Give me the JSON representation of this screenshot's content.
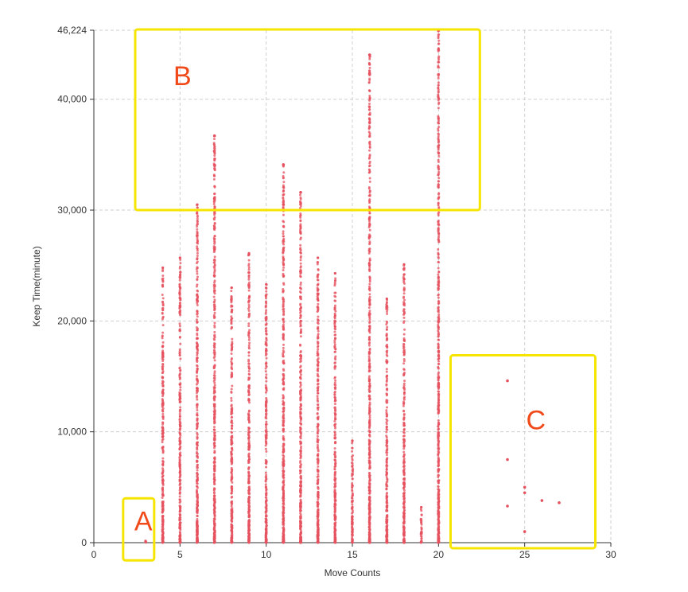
{
  "chart_data": {
    "type": "scatter",
    "title": "",
    "xlabel": "Move Counts",
    "ylabel": "Keep Time(minute)",
    "xlim": [
      0,
      30
    ],
    "ylim": [
      0,
      46224
    ],
    "x_ticks": [
      "0",
      "5",
      "10",
      "15",
      "20",
      "25",
      "30"
    ],
    "y_ticks": [
      "0",
      "10,000",
      "20,000",
      "30,000",
      "40,000",
      "46,224"
    ],
    "grid": true,
    "point_color": "#e5515f",
    "columns": [
      {
        "x": 3,
        "max": 150
      },
      {
        "x": 4,
        "max": 24800
      },
      {
        "x": 5,
        "max": 25700
      },
      {
        "x": 6,
        "max": 30500
      },
      {
        "x": 7,
        "max": 36700
      },
      {
        "x": 8,
        "max": 23000
      },
      {
        "x": 9,
        "max": 26100
      },
      {
        "x": 10,
        "max": 23300
      },
      {
        "x": 11,
        "max": 34100
      },
      {
        "x": 12,
        "max": 31600
      },
      {
        "x": 13,
        "max": 25700
      },
      {
        "x": 14,
        "max": 24300
      },
      {
        "x": 15,
        "max": 9200
      },
      {
        "x": 16,
        "max": 44000
      },
      {
        "x": 17,
        "max": 22000
      },
      {
        "x": 18,
        "max": 25100
      },
      {
        "x": 19,
        "max": 3200
      },
      {
        "x": 20,
        "max": 46224
      }
    ],
    "outliers": [
      {
        "x": 7,
        "y": 36700
      },
      {
        "x": 7,
        "y": 31000
      },
      {
        "x": 11,
        "y": 34100
      },
      {
        "x": 11,
        "y": 30500
      },
      {
        "x": 12,
        "y": 31600
      },
      {
        "x": 16,
        "y": 44000
      },
      {
        "x": 16,
        "y": 42300
      },
      {
        "x": 20,
        "y": 46224
      },
      {
        "x": 20,
        "y": 14300
      },
      {
        "x": 24,
        "y": 14600
      },
      {
        "x": 24,
        "y": 7500
      },
      {
        "x": 24,
        "y": 3300
      },
      {
        "x": 25,
        "y": 5000
      },
      {
        "x": 25,
        "y": 4500
      },
      {
        "x": 25,
        "y": 1000
      },
      {
        "x": 26,
        "y": 3800
      },
      {
        "x": 27,
        "y": 3600
      }
    ],
    "annotations": [
      {
        "label": "A",
        "x0": 1.7,
        "x1": 3.5,
        "y0": -1600,
        "y1": 4000,
        "color": "#f5e500"
      },
      {
        "label": "B",
        "x0": 2.4,
        "x1": 22.4,
        "y0": 30000,
        "y1": 46300,
        "color": "#f5e500"
      },
      {
        "label": "C",
        "x0": 20.7,
        "x1": 29.1,
        "y0": -500,
        "y1": 16900,
        "color": "#f5e500"
      }
    ],
    "annotation_label_color": "#f04a1a"
  }
}
